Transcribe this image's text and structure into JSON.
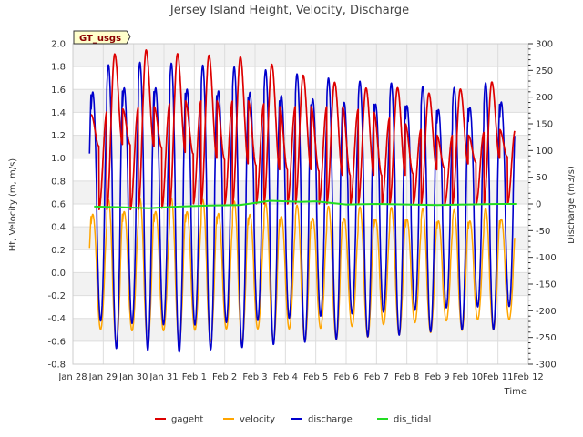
{
  "chart_data": {
    "type": "line",
    "title": "Jersey Island Height, Velocity, Discharge",
    "xlabel": "Time",
    "ylabel_left": "Ht, Velocity (m, m/s)",
    "ylabel_right": "Discharge (m3/s)",
    "badge": "GT_usgs",
    "x_ticks": [
      "Jan 28",
      "Jan 29",
      "Jan 30",
      "Jan 31",
      "Feb 1",
      "Feb 2",
      "Feb 3",
      "Feb 4",
      "Feb 5",
      "Feb 6",
      "Feb 7",
      "Feb 8",
      "Feb 9",
      "Feb 10",
      "Feb 11",
      "Feb 12"
    ],
    "x_range_days": [
      0,
      15
    ],
    "ylim_left": [
      -0.8,
      2.0
    ],
    "ylim_right": [
      -300,
      300
    ],
    "y_ticks_left": [
      "-0.8",
      "-0.6",
      "-0.4",
      "-0.2",
      "0.0",
      "0.2",
      "0.4",
      "0.6",
      "0.8",
      "1.0",
      "1.2",
      "1.4",
      "1.6",
      "1.8",
      "2.0"
    ],
    "y_ticks_right": [
      "-300",
      "-250",
      "-200",
      "-150",
      "-100",
      "-50",
      "0",
      "50",
      "100",
      "150",
      "200",
      "250",
      "300"
    ],
    "series_meta": [
      {
        "name": "gageht",
        "color": "#dd0000",
        "axis": "left"
      },
      {
        "name": "velocity",
        "color": "#ffa500",
        "axis": "left"
      },
      {
        "name": "discharge",
        "color": "#0000cc",
        "axis": "right"
      },
      {
        "name": "dis_tidal",
        "color": "#22dd22",
        "axis": "right"
      }
    ],
    "gageht_cycles": {
      "period_days": 1.035,
      "start_day": 0.6,
      "end_day": 14.55,
      "high_high": [
        1.85,
        1.93,
        1.95,
        1.9,
        1.9,
        1.88,
        1.8,
        1.7,
        1.65,
        1.6,
        1.62,
        1.55,
        1.62,
        1.68,
        1.72
      ],
      "low_high": [
        1.38,
        1.43,
        1.45,
        1.5,
        1.5,
        1.5,
        1.45,
        1.45,
        1.45,
        1.4,
        1.3,
        1.2,
        1.2,
        1.25,
        1.25
      ],
      "high_low": [
        1.1,
        1.12,
        1.1,
        1.05,
        1.0,
        0.95,
        0.9,
        0.9,
        0.85,
        0.85,
        0.85,
        0.9,
        0.95,
        1.0,
        1.05
      ],
      "low_low": [
        0.55,
        0.55,
        0.55,
        0.6,
        0.6,
        0.6,
        0.6,
        0.6,
        0.6,
        0.6,
        0.6,
        0.6,
        0.6,
        0.6,
        0.6
      ]
    },
    "velocity_cycles": {
      "max_flood": [
        0.62,
        0.65,
        0.65,
        0.65,
        0.63,
        0.62,
        0.6,
        0.58,
        0.58,
        0.57,
        0.57,
        0.55,
        0.55,
        0.57,
        0.6
      ],
      "min_ebb": [
        -0.6,
        -0.62,
        -0.62,
        -0.62,
        -0.6,
        -0.6,
        -0.6,
        -0.6,
        -0.58,
        -0.56,
        -0.54,
        -0.52,
        -0.5,
        -0.5,
        -0.5
      ]
    },
    "discharge_cycles": {
      "peak_flood": [
        255,
        265,
        265,
        262,
        258,
        255,
        248,
        240,
        232,
        228,
        225,
        215,
        220,
        232,
        245
      ],
      "peak_ebb": [
        -265,
        -272,
        -275,
        -278,
        -272,
        -268,
        -262,
        -258,
        -252,
        -248,
        -245,
        -238,
        -235,
        -235,
        -232
      ]
    },
    "dis_tidal": {
      "x": [
        0.7,
        1.5,
        2.5,
        3.5,
        4.5,
        5.5,
        6.5,
        7.5,
        8.0,
        9.0,
        10.0,
        11.0,
        12.0,
        13.0,
        14.0,
        14.6
      ],
      "y": [
        -5,
        -6,
        -8,
        -5,
        -3,
        -2,
        6,
        4,
        5,
        -1,
        0,
        -1,
        -2,
        -1,
        0,
        0
      ]
    }
  }
}
